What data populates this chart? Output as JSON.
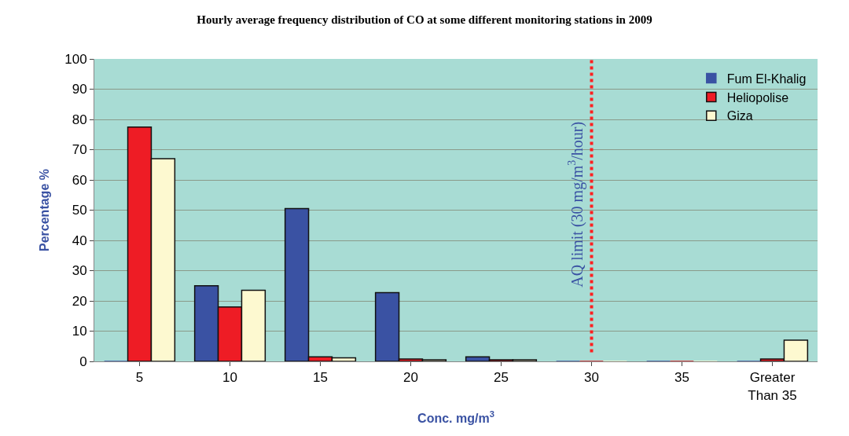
{
  "chart_data": {
    "type": "bar",
    "title": "Hourly average frequency distribution of CO at some different monitoring stations in 2009",
    "xlabel": "Conc. mg/m$^{3}$",
    "ylabel": "Percentage %",
    "categories": [
      "5",
      "10",
      "15",
      "20",
      "25",
      "30",
      "35",
      "Greater Than 35"
    ],
    "series": [
      {
        "name": "Fum El-Khalig",
        "color": "#3a52a3",
        "values": [
          0,
          25,
          50.5,
          22.7,
          1.5,
          0,
          0,
          0
        ]
      },
      {
        "name": "Heliopolise",
        "color": "#ee1c25",
        "values": [
          77.5,
          18,
          1.5,
          0.8,
          0.5,
          0,
          0,
          0.8
        ]
      },
      {
        "name": "Giza",
        "color": "#fdf9d0",
        "values": [
          67,
          23.5,
          1.2,
          0.5,
          0.5,
          0,
          0,
          7
        ]
      }
    ],
    "ylim": [
      0,
      100
    ],
    "yticks": [
      0,
      10,
      20,
      30,
      40,
      50,
      60,
      70,
      80,
      90,
      100
    ],
    "grid": "y",
    "legend": "top right",
    "ref_lines": [
      {
        "axis": "x",
        "value": "30",
        "label": "AQ limit (30 mg/m$^{3}$/hour)",
        "color": "#ff2020",
        "line_style": "dotted"
      }
    ]
  }
}
